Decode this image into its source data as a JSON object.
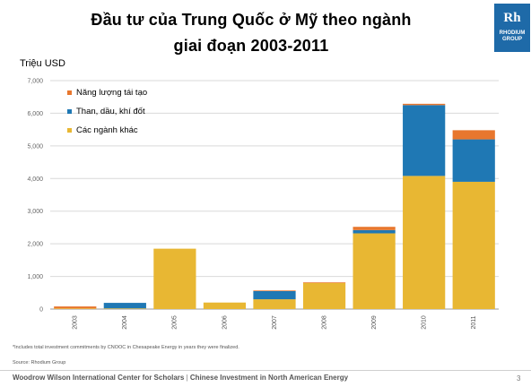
{
  "title_line1": "Đầu tư của Trung Quốc ở Mỹ theo ngành",
  "title_line2": "giai đoạn 2003-2011",
  "logo": {
    "mark": "Rh",
    "name_line1": "RHODIUM",
    "name_line2": "GROUP",
    "color": "#1e6aa8"
  },
  "footnote": "*Includes total investment commitments by CNOOC in Chesapeake Energy in years they were finalized.",
  "source": "Source: Rhodium Group",
  "footer_left": "Woodrow Wilson International Center for Scholars",
  "footer_sep": " | ",
  "footer_right": "Chinese Investment in North American Energy",
  "page_number": "3",
  "chart_data": {
    "type": "bar",
    "stacked": true,
    "ylabel": "Triệu USD",
    "ylim": [
      0,
      7000
    ],
    "yticks": [
      "0",
      "1,000",
      "2,000",
      "3,000",
      "4,000",
      "5,000",
      "6,000",
      "7,000"
    ],
    "categories": [
      "2003",
      "2004",
      "2005",
      "2006",
      "2007",
      "2008",
      "2009",
      "2010",
      "2011"
    ],
    "series": [
      {
        "name": "Các ngành khác",
        "color": "#e8b733",
        "values": [
          20,
          20,
          1850,
          200,
          300,
          800,
          2320,
          4080,
          3900
        ]
      },
      {
        "name": "Than, dầu, khí đốt",
        "color": "#1f78b4",
        "values": [
          0,
          170,
          0,
          0,
          250,
          0,
          100,
          2170,
          1300
        ]
      },
      {
        "name": "Năng lượng tái tạo",
        "color": "#e8772e",
        "values": [
          60,
          0,
          0,
          0,
          20,
          20,
          100,
          40,
          280
        ]
      }
    ],
    "legend_order": [
      2,
      1,
      0
    ],
    "legend_position": "top-left",
    "grid": true
  }
}
